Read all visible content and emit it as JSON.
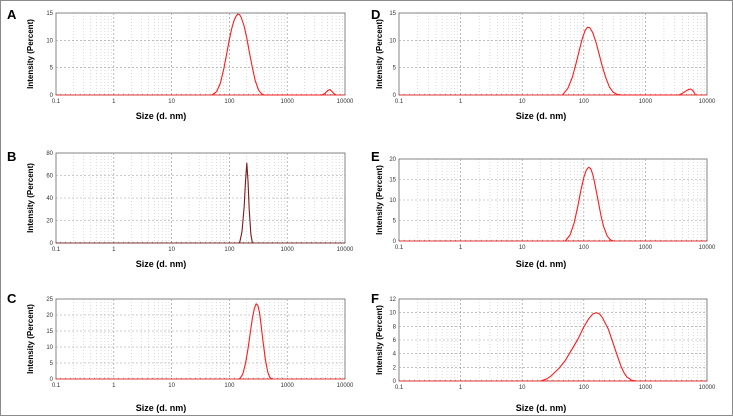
{
  "figure": {
    "colors": {
      "curve": "#ff1a1a",
      "curve_dark": "#7a1a1a",
      "grid": "#9a9a9a",
      "axis": "#666666",
      "baseline_marks": "#404040"
    }
  },
  "chart_data": [
    {
      "id": "A",
      "type": "line",
      "panel_label": "A",
      "xlabel": "Size (d. nm)",
      "ylabel": "Intensity (Percent)",
      "xscale": "log",
      "xlim": [
        0.1,
        10000
      ],
      "xticks": [
        "0.1",
        "1",
        "10",
        "100",
        "1000",
        "10000"
      ],
      "ylim": [
        0,
        15
      ],
      "yticks": [
        "0",
        "5",
        "10",
        "15"
      ],
      "grid": true,
      "series": [
        {
          "color": "#ff1a1a",
          "x": [
            50,
            60,
            70,
            80,
            90,
            100,
            110,
            120,
            130,
            140,
            150,
            160,
            180,
            200,
            220,
            250,
            280,
            320,
            360,
            400,
            4000,
            4500,
            5000,
            5500,
            6000,
            6500,
            7000
          ],
          "y": [
            0,
            0.6,
            2.2,
            4.8,
            7.6,
            10.2,
            12.2,
            13.6,
            14.4,
            14.8,
            14.7,
            14.2,
            12.6,
            10.4,
            8.0,
            5.0,
            2.6,
            0.9,
            0.2,
            0,
            0,
            0.3,
            0.8,
            1.0,
            0.6,
            0.2,
            0
          ]
        }
      ]
    },
    {
      "id": "B",
      "type": "line",
      "panel_label": "B",
      "xlabel": "Size (d. nm)",
      "ylabel": "Intensity (Percent)",
      "xscale": "log",
      "xlim": [
        0.1,
        10000
      ],
      "xticks": [
        "0.1",
        "1",
        "10",
        "100",
        "1000",
        "10000"
      ],
      "ylim": [
        0,
        80
      ],
      "yticks": [
        "0",
        "20",
        "40",
        "60",
        "80"
      ],
      "grid": true,
      "series": [
        {
          "color": "#7a1a1a",
          "x": [
            150,
            165,
            180,
            190,
            200,
            210,
            220,
            235,
            250
          ],
          "y": [
            0,
            10,
            32,
            55,
            71,
            55,
            30,
            8,
            0
          ]
        }
      ]
    },
    {
      "id": "C",
      "type": "line",
      "panel_label": "C",
      "xlabel": "Size (d. nm)",
      "ylabel": "Intensity (Percent)",
      "xscale": "log",
      "xlim": [
        0.1,
        10000
      ],
      "xticks": [
        "0.1",
        "1",
        "10",
        "100",
        "1000",
        "10000"
      ],
      "ylim": [
        0,
        25
      ],
      "yticks": [
        "0",
        "5",
        "10",
        "15",
        "20",
        "25"
      ],
      "grid": true,
      "series": [
        {
          "color": "#ff1a1a",
          "x": [
            150,
            170,
            190,
            210,
            230,
            250,
            270,
            290,
            310,
            330,
            350,
            380,
            420,
            460,
            500,
            550
          ],
          "y": [
            0,
            1.5,
            4.8,
            9.5,
            14.5,
            19.0,
            22.0,
            23.5,
            23.0,
            21.0,
            17.5,
            12.0,
            6.0,
            2.2,
            0.5,
            0
          ]
        }
      ]
    },
    {
      "id": "D",
      "type": "line",
      "panel_label": "D",
      "xlabel": "Size (d. nm)",
      "ylabel": "Intensity (Percent)",
      "xscale": "log",
      "xlim": [
        0.1,
        10000
      ],
      "xticks": [
        "0.1",
        "1",
        "10",
        "100",
        "1000",
        "10000"
      ],
      "ylim": [
        0,
        15
      ],
      "yticks": [
        "0",
        "5",
        "10",
        "15"
      ],
      "grid": true,
      "series": [
        {
          "color": "#ff1a1a",
          "x": [
            45,
            55,
            65,
            75,
            85,
            95,
            105,
            115,
            125,
            140,
            160,
            180,
            200,
            230,
            260,
            300,
            350,
            400,
            3500,
            4000,
            4500,
            5000,
            5500,
            6000,
            6500
          ],
          "y": [
            0,
            1.2,
            3.2,
            5.8,
            8.3,
            10.4,
            11.8,
            12.4,
            12.3,
            11.4,
            9.4,
            7.2,
            5.2,
            3.0,
            1.5,
            0.5,
            0.1,
            0,
            0,
            0.3,
            0.7,
            1.0,
            1.1,
            0.7,
            0
          ]
        }
      ]
    },
    {
      "id": "E",
      "type": "line",
      "panel_label": "E",
      "xlabel": "Size (d. nm)",
      "ylabel": "Intensity (Percent)",
      "xscale": "log",
      "xlim": [
        0.1,
        10000
      ],
      "xticks": [
        "0.1",
        "1",
        "10",
        "100",
        "1000",
        "10000"
      ],
      "ylim": [
        0,
        20
      ],
      "yticks": [
        "0",
        "5",
        "10",
        "15",
        "20"
      ],
      "grid": true,
      "series": [
        {
          "color": "#ff1a1a",
          "x": [
            50,
            60,
            70,
            80,
            90,
            100,
            110,
            120,
            130,
            140,
            150,
            170,
            190,
            210,
            240,
            270,
            300
          ],
          "y": [
            0,
            1.5,
            4.5,
            8.5,
            12.5,
            15.5,
            17.3,
            18.0,
            17.6,
            16.2,
            14.2,
            10.0,
            6.2,
            3.5,
            1.2,
            0.3,
            0
          ]
        }
      ]
    },
    {
      "id": "F",
      "type": "line",
      "panel_label": "F",
      "xlabel": "Size (d. nm)",
      "ylabel": "Intensity (Percent)",
      "xscale": "log",
      "xlim": [
        0.1,
        10000
      ],
      "xticks": [
        "0.1",
        "1",
        "10",
        "100",
        "1000",
        "10000"
      ],
      "ylim": [
        0,
        12
      ],
      "yticks": [
        "0",
        "2",
        "4",
        "6",
        "8",
        "10",
        "12"
      ],
      "grid": true,
      "series": [
        {
          "color": "#ff1a1a",
          "x": [
            20,
            25,
            30,
            40,
            50,
            60,
            70,
            80,
            100,
            120,
            140,
            160,
            180,
            200,
            250,
            300,
            350,
            400,
            450,
            500,
            600,
            700
          ],
          "y": [
            0,
            0.3,
            0.8,
            1.9,
            3.0,
            4.2,
            5.2,
            6.1,
            7.9,
            9.1,
            9.8,
            10.0,
            9.8,
            9.3,
            7.6,
            5.5,
            3.7,
            2.2,
            1.2,
            0.6,
            0.1,
            0
          ]
        }
      ]
    }
  ]
}
